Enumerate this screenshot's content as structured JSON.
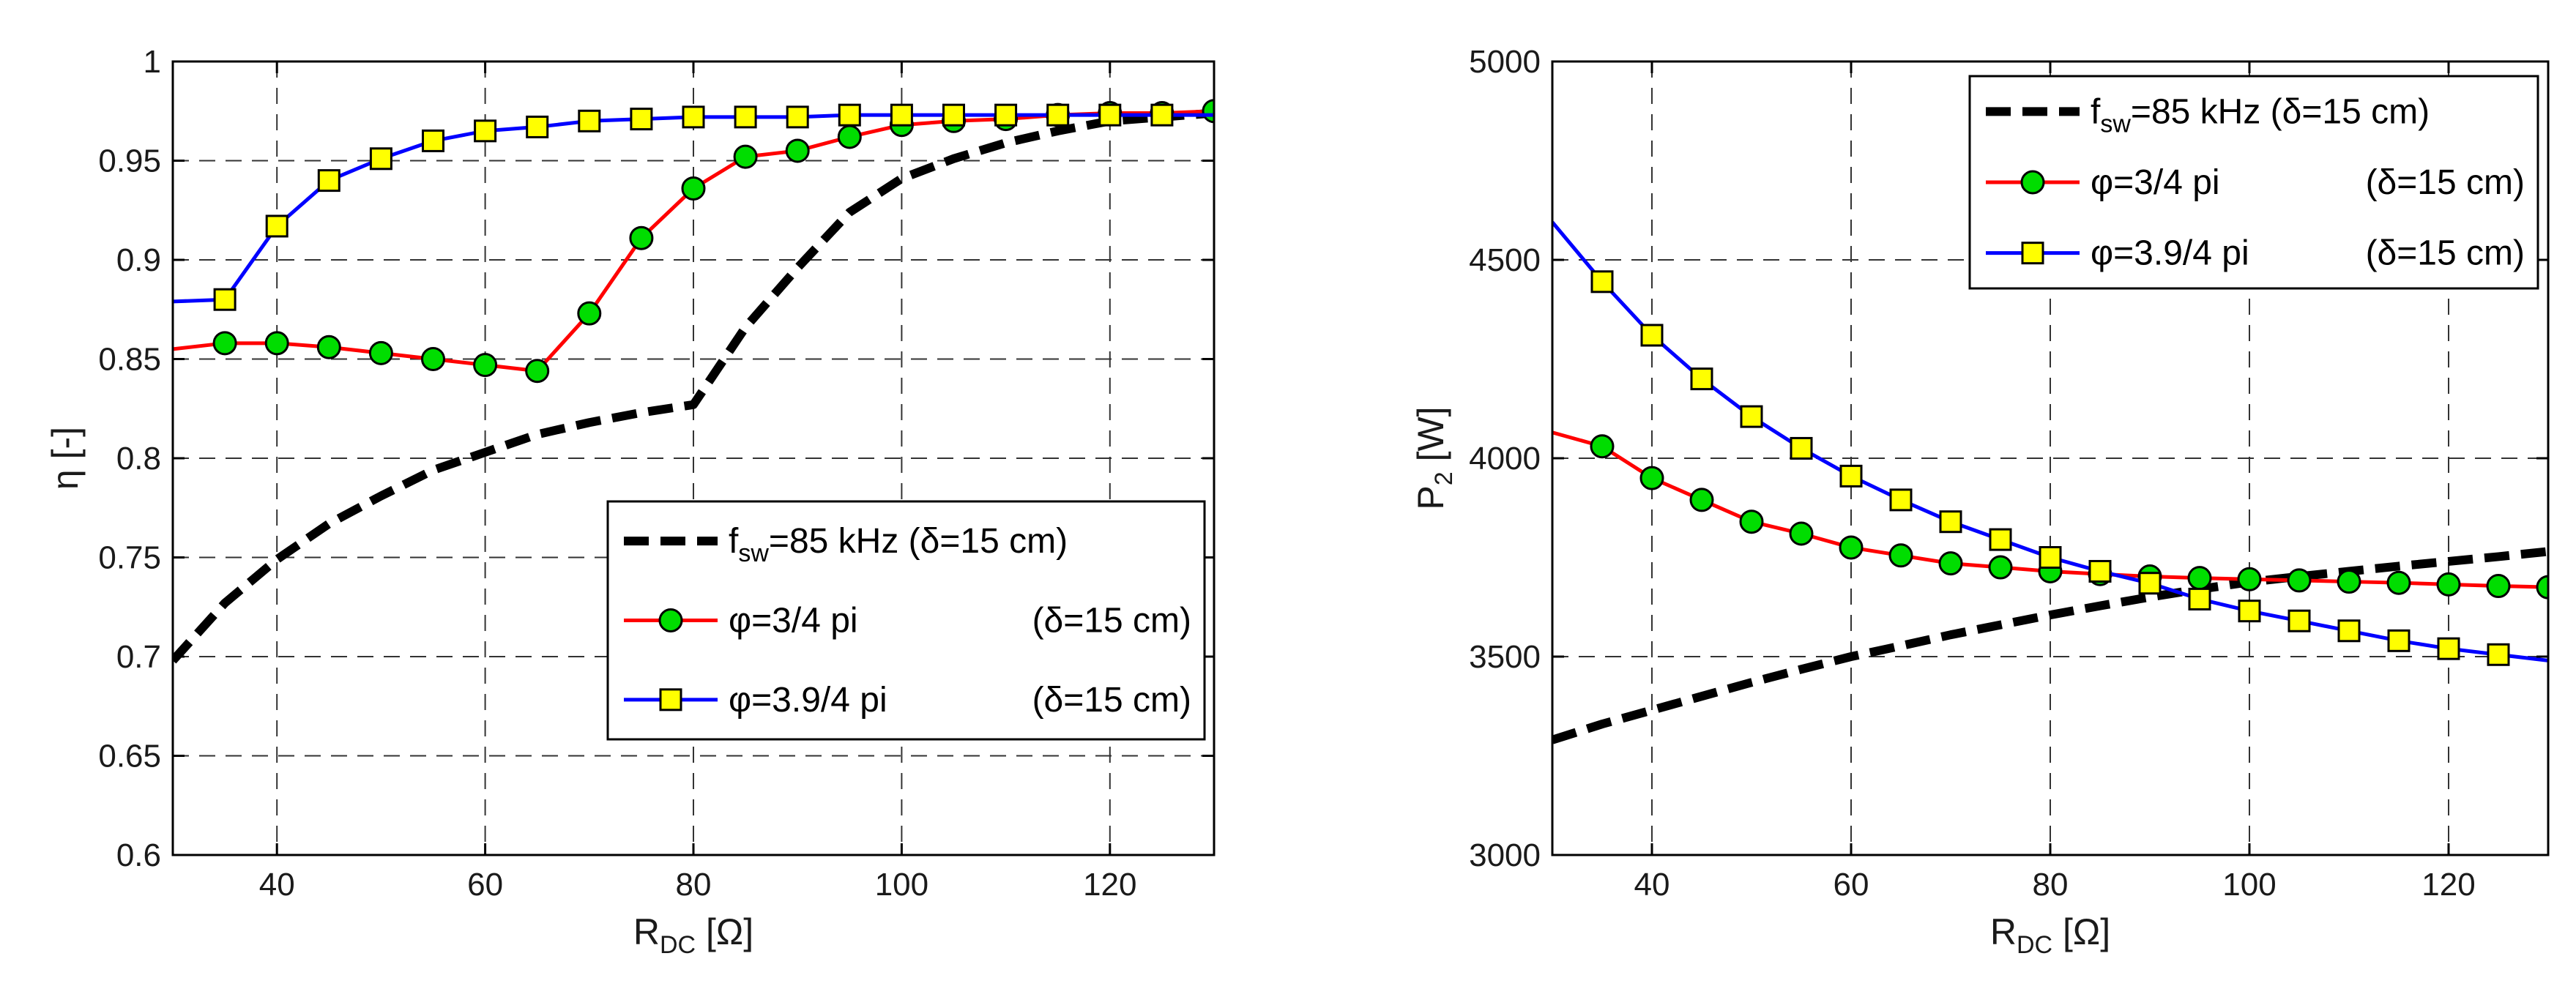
{
  "chart_data": [
    {
      "type": "line",
      "xlabel": {
        "main": "R",
        "sub": "DC",
        "unit": " [Ω]"
      },
      "ylabel": {
        "main": "η [-]"
      },
      "xlim": [
        30,
        130
      ],
      "ylim": [
        0.6,
        1.0
      ],
      "xticks": [
        40,
        60,
        80,
        100,
        120
      ],
      "xtick_labels": [
        "40",
        "60",
        "80",
        "100",
        "120"
      ],
      "yticks": [
        0.6,
        0.65,
        0.7,
        0.75,
        0.8,
        0.85,
        0.9,
        0.95,
        1.0
      ],
      "ytick_labels": [
        "0.6",
        "0.65",
        "0.7",
        "0.75",
        "0.8",
        "0.85",
        "0.9",
        "0.95",
        "1"
      ],
      "grid": true,
      "legend_position": "lower-right",
      "series": [
        {
          "name": "fsw=85 kHz (δ=15 cm)",
          "legend": {
            "pre": "f",
            "sub": "sw",
            "post": "=85 kHz (δ=15 cm)"
          },
          "style": "dashed",
          "color": "#000000",
          "marker": "none",
          "x": [
            30,
            35,
            40,
            45,
            50,
            55,
            60,
            65,
            70,
            75,
            80,
            85,
            90,
            95,
            100,
            105,
            110,
            115,
            120,
            125,
            130
          ],
          "y": [
            0.698,
            0.727,
            0.749,
            0.767,
            0.781,
            0.794,
            0.803,
            0.812,
            0.818,
            0.823,
            0.827,
            0.866,
            0.896,
            0.924,
            0.941,
            0.951,
            0.959,
            0.965,
            0.97,
            0.972,
            0.974
          ]
        },
        {
          "name": "φ=3/4 pi (δ=15 cm)",
          "legend": {
            "pre": "φ=3/4 pi",
            "sub": "",
            "post": "",
            "note": "(δ=15 cm)"
          },
          "style": "solid",
          "color": "#ff0000",
          "marker": "circle",
          "marker_fill": "#00dd00",
          "marker_x": [
            35,
            40,
            45,
            50,
            55,
            60,
            65,
            70,
            75,
            80,
            85,
            90,
            95,
            100,
            105,
            110,
            115,
            120,
            125,
            130
          ],
          "x": [
            30,
            35,
            40,
            45,
            50,
            55,
            60,
            65,
            70,
            75,
            80,
            85,
            90,
            95,
            100,
            105,
            110,
            115,
            120,
            125,
            130
          ],
          "y": [
            0.855,
            0.858,
            0.858,
            0.856,
            0.853,
            0.85,
            0.847,
            0.844,
            0.873,
            0.911,
            0.936,
            0.952,
            0.955,
            0.962,
            0.968,
            0.97,
            0.971,
            0.973,
            0.974,
            0.974,
            0.975
          ]
        },
        {
          "name": "φ=3.9/4 pi (δ=15 cm)",
          "legend": {
            "pre": "φ=3.9/4 pi",
            "sub": "",
            "post": "",
            "note": "(δ=15 cm)"
          },
          "style": "solid",
          "color": "#0000ff",
          "marker": "square",
          "marker_fill": "#ffff00",
          "marker_x": [
            35,
            40,
            45,
            50,
            55,
            60,
            65,
            70,
            75,
            80,
            85,
            90,
            95,
            100,
            105,
            110,
            115,
            120,
            125
          ],
          "x": [
            30,
            35,
            40,
            45,
            50,
            55,
            60,
            65,
            70,
            75,
            80,
            85,
            90,
            95,
            100,
            105,
            110,
            115,
            120,
            125,
            130
          ],
          "y": [
            0.879,
            0.88,
            0.917,
            0.94,
            0.951,
            0.96,
            0.965,
            0.967,
            0.97,
            0.971,
            0.972,
            0.972,
            0.972,
            0.973,
            0.973,
            0.973,
            0.973,
            0.973,
            0.973,
            0.973,
            0.973
          ]
        }
      ]
    },
    {
      "type": "line",
      "xlabel": {
        "main": "R",
        "sub": "DC",
        "unit": " [Ω]"
      },
      "ylabel": {
        "main": "P",
        "sub": "2",
        "unit": " [W]"
      },
      "xlim": [
        30,
        130
      ],
      "ylim": [
        3000,
        5000
      ],
      "xticks": [
        40,
        60,
        80,
        100,
        120
      ],
      "xtick_labels": [
        "40",
        "60",
        "80",
        "100",
        "120"
      ],
      "yticks": [
        3000,
        3500,
        4000,
        4500,
        5000
      ],
      "ytick_labels": [
        "3000",
        "3500",
        "4000",
        "4500",
        "5000"
      ],
      "grid": true,
      "legend_position": "top-right",
      "series": [
        {
          "name": "fsw=85 kHz (δ=15 cm)",
          "legend": {
            "pre": "f",
            "sub": "sw",
            "post": "=85 kHz (δ=15 cm)"
          },
          "style": "dashed",
          "color": "#000000",
          "marker": "none",
          "x": [
            30,
            35,
            40,
            45,
            50,
            55,
            60,
            65,
            70,
            75,
            80,
            85,
            90,
            95,
            100,
            105,
            110,
            115,
            120,
            125,
            130
          ],
          "y": [
            3290,
            3330,
            3365,
            3400,
            3435,
            3468,
            3500,
            3527,
            3555,
            3580,
            3605,
            3628,
            3650,
            3670,
            3688,
            3702,
            3715,
            3728,
            3740,
            3752,
            3765
          ]
        },
        {
          "name": "φ=3/4 pi (δ=15 cm)",
          "legend": {
            "pre": "φ=3/4 pi",
            "sub": "",
            "post": "",
            "note": "(δ=15 cm)"
          },
          "style": "solid",
          "color": "#ff0000",
          "marker": "circle",
          "marker_fill": "#00dd00",
          "marker_x": [
            35,
            40,
            45,
            50,
            55,
            60,
            65,
            70,
            75,
            80,
            85,
            90,
            95,
            100,
            105,
            110,
            115,
            120,
            125,
            130
          ],
          "x": [
            30,
            35,
            40,
            45,
            50,
            55,
            60,
            65,
            70,
            75,
            80,
            85,
            90,
            95,
            100,
            105,
            110,
            115,
            120,
            125,
            130
          ],
          "y": [
            4065,
            4030,
            3950,
            3895,
            3840,
            3810,
            3775,
            3755,
            3735,
            3725,
            3715,
            3708,
            3702,
            3698,
            3695,
            3692,
            3689,
            3686,
            3682,
            3678,
            3675
          ]
        },
        {
          "name": "φ=3.9/4 pi (δ=15 cm)",
          "legend": {
            "pre": "φ=3.9/4 pi",
            "sub": "",
            "post": "",
            "note": "(δ=15 cm)"
          },
          "style": "solid",
          "color": "#0000ff",
          "marker": "square",
          "marker_fill": "#ffff00",
          "marker_x": [
            35,
            40,
            45,
            50,
            55,
            60,
            65,
            70,
            75,
            80,
            85,
            90,
            95,
            100,
            105,
            110,
            115,
            120,
            125
          ],
          "x": [
            30,
            35,
            40,
            45,
            50,
            55,
            60,
            65,
            70,
            75,
            80,
            85,
            90,
            95,
            100,
            105,
            110,
            115,
            120,
            125,
            130
          ],
          "y": [
            4595,
            4445,
            4310,
            4200,
            4105,
            4025,
            3955,
            3895,
            3840,
            3795,
            3750,
            3715,
            3685,
            3645,
            3615,
            3590,
            3565,
            3540,
            3520,
            3505,
            3490
          ]
        }
      ]
    }
  ]
}
